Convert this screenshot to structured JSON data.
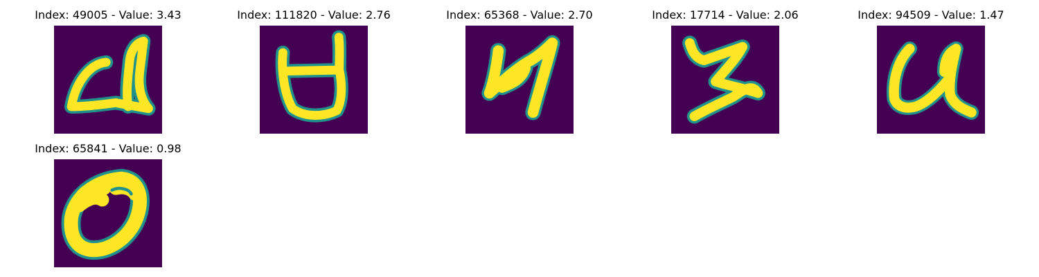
{
  "panels": [
    {
      "title": "Index: 49005 - Value: 3.43",
      "index": 49005,
      "value": 3.43,
      "glyph": "handwritten-u-like"
    },
    {
      "title": "Index: 111820 - Value: 2.76",
      "index": 111820,
      "value": 2.76,
      "glyph": "handwritten-cup-like"
    },
    {
      "title": "Index: 65368 - Value: 2.70",
      "index": 65368,
      "value": 2.7,
      "glyph": "handwritten-y-like"
    },
    {
      "title": "Index: 17714 - Value: 2.06",
      "index": 17714,
      "value": 2.06,
      "glyph": "handwritten-z-like"
    },
    {
      "title": "Index: 94509 - Value: 1.47",
      "index": 94509,
      "value": 1.47,
      "glyph": "handwritten-u-like"
    },
    {
      "title": "Index: 65841 - Value: 0.98",
      "index": 65841,
      "value": 0.98,
      "glyph": "handwritten-zero-like"
    }
  ],
  "colors": {
    "background": "#440154",
    "edge": "#21918c",
    "stroke": "#fde725"
  }
}
